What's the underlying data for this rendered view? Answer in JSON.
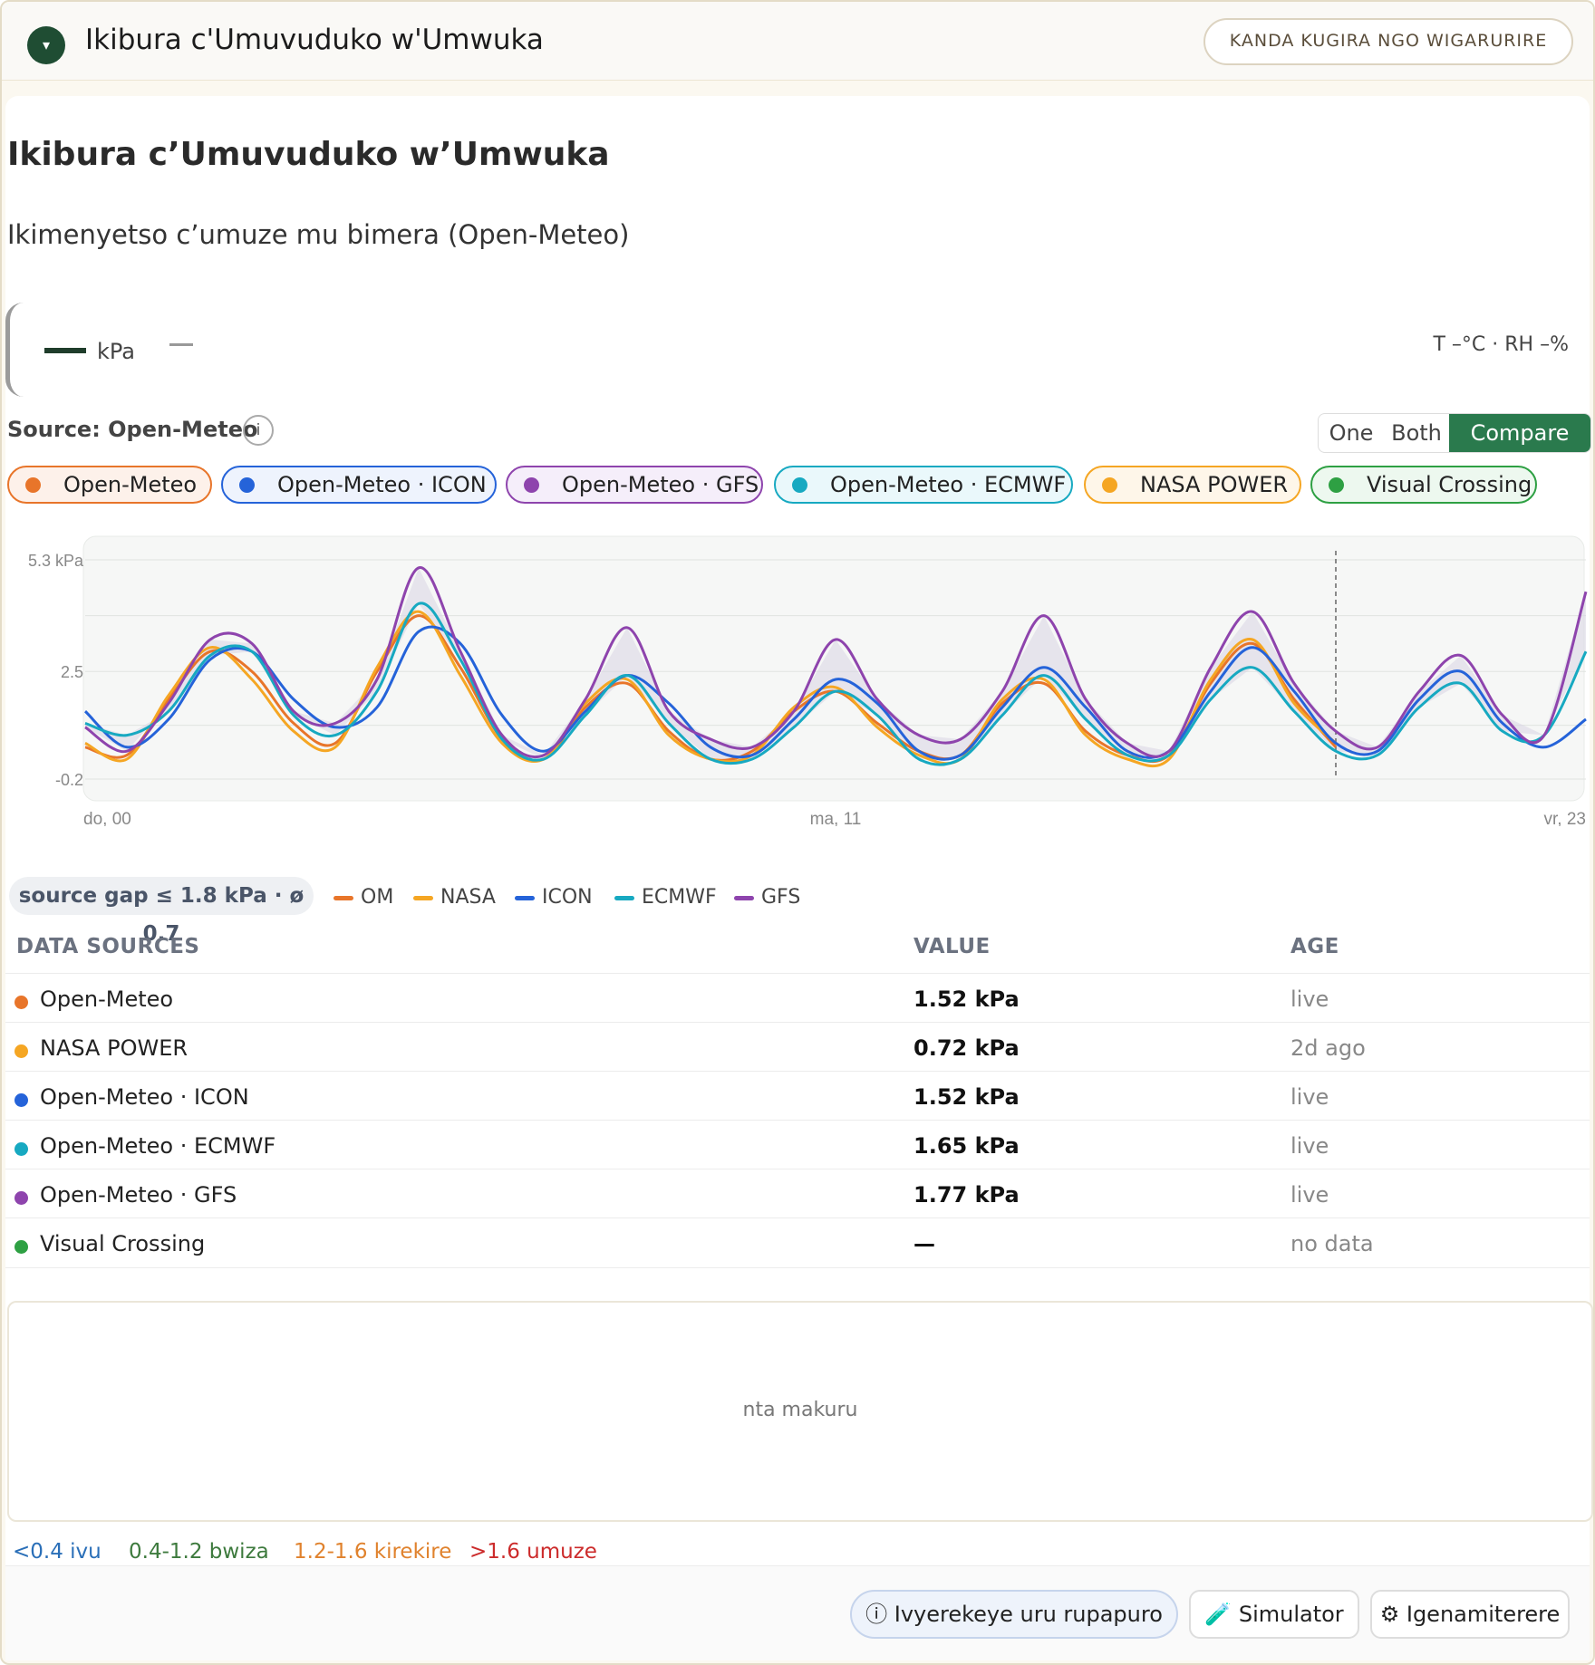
{
  "app": {
    "title": "Ikibura c'Umuvuduko w'Umwuka",
    "widget_button": "KANDA KUGIRA NGO WIGARURIRE",
    "collapse_glyph": "▾"
  },
  "card": {
    "title": "Ikibura c’Umuvuduko w’Umwuka",
    "subtitle": "Ikimenyetso c’umuze mu bimera (Open-Meteo)"
  },
  "readout": {
    "unit": "kPa",
    "temp_rh": "T –°C  ·  RH –%"
  },
  "source": {
    "label": "Source: Open-Meteo",
    "info_glyph": "i"
  },
  "mode_toggle": {
    "options": [
      "One",
      "Both",
      "Compare"
    ],
    "active": "Compare"
  },
  "chips": [
    {
      "label": "Open-Meteo",
      "color": "#e8752a",
      "bg": "#fdf1ea"
    },
    {
      "label": "Open-Meteo · ICON",
      "color": "#2563d9",
      "bg": "#eef3fd"
    },
    {
      "label": "Open-Meteo · GFS",
      "color": "#8e44ad",
      "bg": "#f5eefa"
    },
    {
      "label": "Open-Meteo · ECMWF",
      "color": "#17a9c1",
      "bg": "#eaf8fb"
    },
    {
      "label": "NASA POWER",
      "color": "#f5a623",
      "bg": "#fef6e9"
    },
    {
      "label": "Visual Crossing",
      "color": "#2ea043",
      "bg": "#edf8ef"
    }
  ],
  "chart_data": {
    "type": "line",
    "title": "",
    "xlabel": "",
    "ylabel": "",
    "unit": "kPa",
    "ylim": [
      -0.2,
      5.3
    ],
    "yticks": [
      "5.3 kPa",
      "2.5",
      "-0.2"
    ],
    "xticks": [
      "do, 00",
      "ma, 11",
      "vr, 23"
    ],
    "now_marker_hour": 60,
    "series": [
      {
        "name": "OM",
        "color": "#e8752a",
        "x": [
          0,
          2,
          4,
          6,
          8,
          10,
          12,
          14,
          16,
          18,
          20,
          22,
          24,
          26,
          28,
          30,
          32,
          34,
          36,
          38,
          40,
          42,
          44,
          46,
          48,
          50,
          52,
          54,
          56,
          58,
          60
        ],
        "values": [
          0.6,
          0.4,
          1.8,
          3.0,
          2.5,
          1.2,
          0.7,
          2.5,
          3.9,
          2.6,
          0.8,
          0.3,
          1.6,
          2.2,
          1.0,
          0.3,
          0.5,
          1.5,
          2.0,
          1.2,
          0.5,
          0.4,
          1.7,
          2.2,
          1.0,
          0.4,
          0.4,
          2.2,
          3.2,
          1.8,
          0.6
        ]
      },
      {
        "name": "NASA",
        "color": "#f5a623",
        "x": [
          0,
          2,
          4,
          6,
          8,
          10,
          12,
          14,
          16,
          18,
          20,
          22,
          24,
          26,
          28,
          30,
          32,
          34,
          36,
          38,
          40,
          42,
          44,
          46,
          48,
          50,
          52,
          54,
          56,
          58,
          60
        ],
        "values": [
          0.7,
          0.3,
          1.9,
          3.1,
          2.3,
          1.0,
          0.6,
          2.6,
          4.0,
          2.4,
          0.7,
          0.3,
          1.7,
          2.3,
          0.9,
          0.3,
          0.4,
          1.6,
          2.1,
          1.1,
          0.4,
          0.3,
          1.8,
          2.3,
          0.9,
          0.3,
          0.3,
          2.3,
          3.3,
          1.7,
          0.7
        ]
      },
      {
        "name": "ICON",
        "color": "#2563d9",
        "x": [
          0,
          2,
          4,
          6,
          8,
          10,
          12,
          14,
          16,
          18,
          20,
          22,
          24,
          26,
          28,
          30,
          32,
          34,
          36,
          38,
          40,
          42,
          44,
          46,
          48,
          50,
          52,
          54,
          56,
          58,
          60,
          62,
          64,
          66,
          68,
          70,
          72
        ],
        "values": [
          1.5,
          0.6,
          1.3,
          2.8,
          3.0,
          1.8,
          1.1,
          1.6,
          3.5,
          3.2,
          1.4,
          0.5,
          1.5,
          2.4,
          1.7,
          0.6,
          0.4,
          1.3,
          2.3,
          1.7,
          0.5,
          0.4,
          1.6,
          2.6,
          1.6,
          0.5,
          0.5,
          2.0,
          3.1,
          2.0,
          0.7,
          0.5,
          1.8,
          2.5,
          1.2,
          0.6,
          1.3
        ]
      },
      {
        "name": "ECMWF",
        "color": "#17a9c1",
        "x": [
          0,
          2,
          4,
          6,
          8,
          10,
          12,
          14,
          16,
          18,
          20,
          22,
          24,
          26,
          28,
          30,
          32,
          34,
          36,
          38,
          40,
          42,
          44,
          46,
          48,
          50,
          52,
          54,
          56,
          58,
          60,
          62,
          64,
          66,
          68,
          70,
          72
        ],
        "values": [
          1.2,
          0.9,
          1.5,
          2.9,
          3.0,
          1.4,
          0.9,
          2.0,
          4.2,
          2.8,
          0.8,
          0.3,
          1.4,
          2.4,
          1.2,
          0.3,
          0.3,
          1.1,
          2.0,
          1.4,
          0.3,
          0.3,
          1.4,
          2.4,
          1.3,
          0.4,
          0.4,
          1.8,
          2.6,
          1.5,
          0.5,
          0.4,
          1.6,
          2.2,
          1.0,
          0.9,
          3.0
        ]
      },
      {
        "name": "GFS",
        "color": "#8e44ad",
        "x": [
          0,
          2,
          4,
          6,
          8,
          10,
          12,
          14,
          16,
          18,
          20,
          22,
          24,
          26,
          28,
          30,
          32,
          34,
          36,
          38,
          40,
          42,
          44,
          46,
          48,
          50,
          52,
          54,
          56,
          58,
          60,
          62,
          64,
          66,
          68,
          70,
          72
        ],
        "values": [
          1.1,
          0.5,
          1.7,
          3.3,
          3.2,
          1.5,
          1.2,
          2.3,
          5.1,
          3.0,
          0.9,
          0.4,
          1.8,
          3.6,
          1.5,
          0.8,
          0.6,
          1.5,
          3.3,
          1.8,
          0.9,
          0.8,
          2.0,
          3.9,
          1.8,
          0.7,
          0.5,
          2.6,
          4.0,
          2.2,
          1.0,
          0.6,
          2.0,
          2.9,
          1.4,
          0.9,
          4.5
        ]
      }
    ]
  },
  "gap_badge": "source gap ≤ 1.8 kPa · ø 0.7",
  "mini_legend": [
    {
      "label": "OM",
      "color": "#e8752a"
    },
    {
      "label": "NASA",
      "color": "#f5a623"
    },
    {
      "label": "ICON",
      "color": "#2563d9"
    },
    {
      "label": "ECMWF",
      "color": "#17a9c1"
    },
    {
      "label": "GFS",
      "color": "#8e44ad"
    }
  ],
  "table": {
    "headers": [
      "DATA SOURCES",
      "VALUE",
      "AGE"
    ],
    "rows": [
      {
        "name": "Open-Meteo",
        "value": "1.52 kPa",
        "age": "live",
        "color": "#e8752a"
      },
      {
        "name": "NASA POWER",
        "value": "0.72 kPa",
        "age": "2d ago",
        "color": "#f5a623"
      },
      {
        "name": "Open-Meteo · ICON",
        "value": "1.52 kPa",
        "age": "live",
        "color": "#2563d9"
      },
      {
        "name": "Open-Meteo · ECMWF",
        "value": "1.65 kPa",
        "age": "live",
        "color": "#17a9c1"
      },
      {
        "name": "Open-Meteo · GFS",
        "value": "1.77 kPa",
        "age": "live",
        "color": "#8e44ad"
      },
      {
        "name": "Visual Crossing",
        "value": "—",
        "age": "no data",
        "color": "#2ea043"
      }
    ]
  },
  "empty_state": "nta makuru",
  "scale_legend": [
    {
      "label": "<0.4 ivu",
      "color": "#2a6fb8"
    },
    {
      "label": "0.4-1.2 bwiza",
      "color": "#3d7a3d"
    },
    {
      "label": "1.2-1.6 kirekire",
      "color": "#e0822d"
    },
    {
      "label": ">1.6 umuze",
      "color": "#cc2b2b"
    }
  ],
  "footer": {
    "info_button": "Ivyerekeye uru rupapuro",
    "simulator_button": "Simulator",
    "settings_button": "Igenamiterere"
  }
}
